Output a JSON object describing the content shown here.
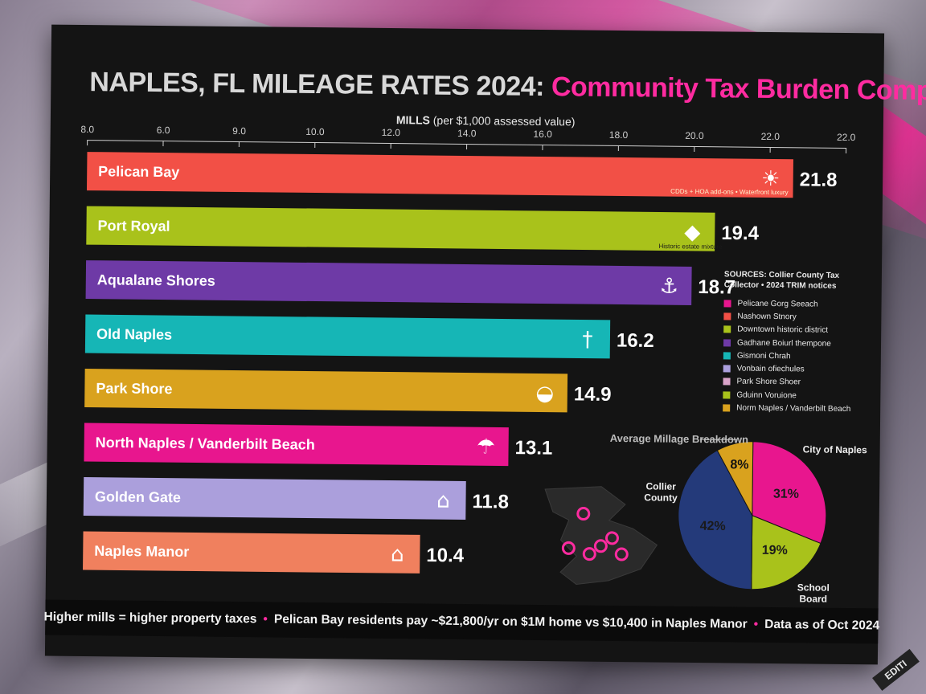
{
  "title": {
    "part1": "NAPLES, FL MILEAGE RATES 2024:",
    "part2": "Community Tax Burden Comparison"
  },
  "colors": {
    "accent": "#ff2ba0",
    "background": "#141414"
  },
  "chart_data": {
    "type": "bar",
    "orientation": "horizontal",
    "xlabel_bold": "MILLS",
    "xlabel_rest": "(per $1,000 assessed value)",
    "tick_labels": [
      "8.0",
      "6.0",
      "9.0",
      "10.0",
      "12.0",
      "14.0",
      "16.0",
      "18.0",
      "20.0",
      "22.0",
      "22.0"
    ],
    "categories": [
      "Pelican Bay",
      "Port Royal",
      "Aqualane Shores",
      "Old Naples",
      "Park Shore",
      "North Naples / Vanderbilt Beach",
      "Golden Gate",
      "Naples Manor"
    ],
    "values": [
      21.8,
      19.4,
      18.7,
      16.2,
      14.9,
      13.1,
      11.8,
      10.4
    ],
    "value_labels": [
      "21.8",
      "19.4",
      "18.7",
      "16.2",
      "14.9",
      "13.1",
      "11.8",
      "10.4"
    ],
    "bar_colors": [
      "#f25046",
      "#a9c21b",
      "#6e3aa6",
      "#16b6b6",
      "#d9a21e",
      "#e8168e",
      "#ab9fdc",
      "#f0805e"
    ],
    "icons": [
      "palm-tree-icon",
      "gem-icon",
      "yacht-icon",
      "street-lamp-icon",
      "shell-icon",
      "beach-umbrella-icon",
      "house-icon",
      "house-icon"
    ],
    "annotations": [
      "CDDs + HOA add-ons • Waterfront luxury",
      "Historic estate mixture"
    ],
    "grid": false
  },
  "legend": {
    "source": "SOURCES: Collier County Tax Collector • 2024 TRIM notices",
    "items": [
      {
        "label": "Pelicane Gorg Seeach",
        "color": "#e8168e"
      },
      {
        "label": "Nashown Stnory",
        "color": "#f25046"
      },
      {
        "label": "Downtown historic district",
        "color": "#a9c21b"
      },
      {
        "label": "Gadhane Boiurl thempone",
        "color": "#6e3aa6"
      },
      {
        "label": "Gismoni Chrah",
        "color": "#16b6b6"
      },
      {
        "label": "Vonbain ofiechules",
        "color": "#ab9fdc"
      },
      {
        "label": "Park Shore Shoer",
        "color": "#d9a3c9"
      },
      {
        "label": "Gduinn Voruione",
        "color": "#a9c21b"
      },
      {
        "label": "Norm Naples / Vanderbilt Beach",
        "color": "#d9a21e"
      }
    ]
  },
  "pie": {
    "title": "Average Millage Breakdown",
    "slices": [
      {
        "label": "City of Naples",
        "value": 31,
        "text": "31%",
        "color": "#e8168e"
      },
      {
        "label": "School Board",
        "value": 19,
        "text": "19%",
        "color": "#a9c21b"
      },
      {
        "label": "Collier County",
        "value": 42,
        "text": "42%",
        "color": "#243a7a"
      },
      {
        "label": "",
        "value": 8,
        "text": "8%",
        "color": "#d9a21e"
      }
    ]
  },
  "footer": {
    "part1": "Higher mills = higher property taxes",
    "part2": "Pelican Bay residents pay ~$21,800/yr on $1M home vs $10,400 in Naples Manor",
    "part3": "Data as of Oct 2024",
    "sep": "•"
  },
  "corner_tag": "EDITI"
}
